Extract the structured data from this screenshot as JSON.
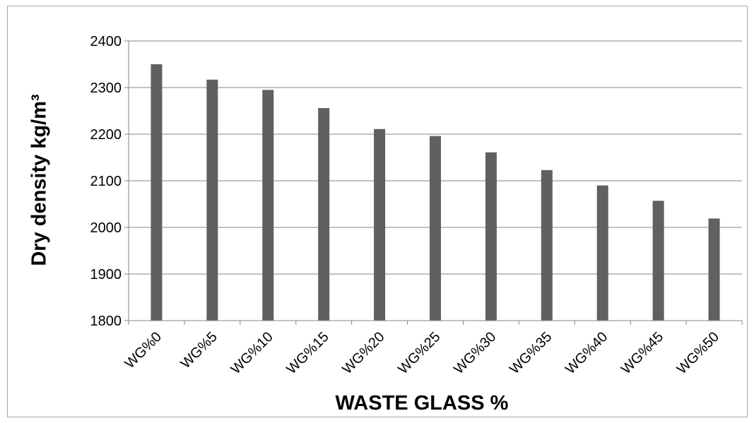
{
  "chart_data": {
    "type": "bar",
    "title": "",
    "xlabel": "WASTE GLASS %",
    "ylabel": "Dry density kg/m³",
    "categories": [
      "WG%0",
      "WG%5",
      "WG%10",
      "WG%15",
      "WG%20",
      "WG%25",
      "WG%30",
      "WG%35",
      "WG%40",
      "WG%45",
      "WG%50"
    ],
    "series": [
      {
        "values": [
          2350,
          2317,
          2295,
          2256,
          2211,
          2196,
          2161,
          2123,
          2090,
          2057,
          2019
        ]
      }
    ],
    "ylim": [
      1800,
      2400
    ],
    "yticks": [
      1800,
      1900,
      2000,
      2100,
      2200,
      2300,
      2400
    ],
    "grid": true,
    "legend": "none",
    "colors": {
      "bar": "#606060",
      "grid": "#868686",
      "axis": "#868686"
    }
  }
}
